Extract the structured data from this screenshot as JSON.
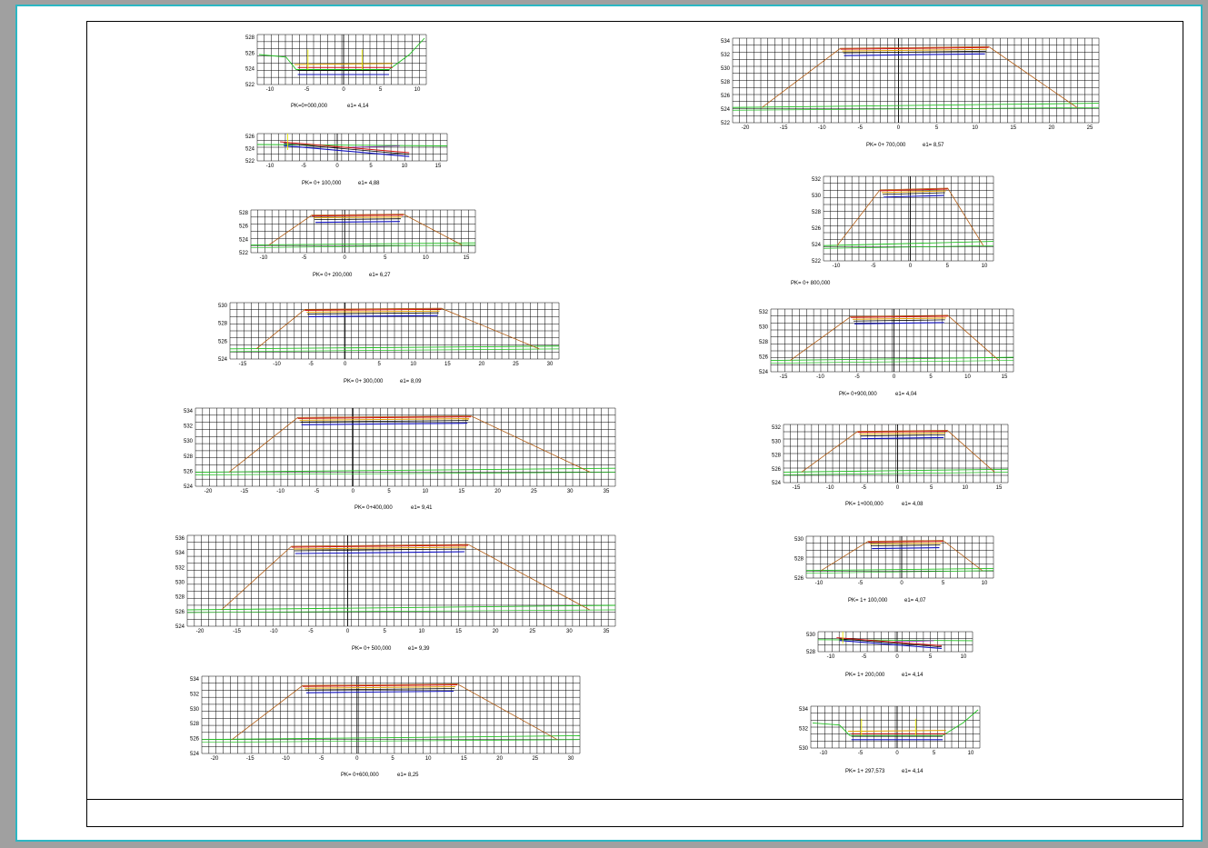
{
  "colors": {
    "paper": "#ffffff",
    "frame_border": "#2bb7c4",
    "grid": "#000000",
    "terrain": "#20c020",
    "design_edge": "#b05a10",
    "layer_blue": "#1010c0",
    "layer_red": "#d01010",
    "layer_orange": "#e0a000",
    "layer_purple": "#9020c0",
    "marker_yellow": "#e8e800"
  },
  "sections": [
    {
      "pk": "PK=0+000,000",
      "e": "e1= 4,14",
      "x_ticks": [
        "-10",
        "-5",
        "0",
        "5",
        "10"
      ],
      "y_ticks": [
        "528",
        "526",
        "524",
        "522"
      ],
      "shape": "ditch"
    },
    {
      "pk": "PK= 0+ 100,000",
      "e": "e1= 4,88",
      "x_ticks": [
        "-10",
        "-5",
        "0",
        "5",
        "10",
        "15"
      ],
      "y_ticks": [
        "526",
        "524",
        "522"
      ],
      "shape": "flat"
    },
    {
      "pk": "PK= 0+ 200,000",
      "e": "e1= 6,27",
      "x_ticks": [
        "-10",
        "-5",
        "0",
        "5",
        "10",
        "15"
      ],
      "y_ticks": [
        "528",
        "526",
        "524",
        "522"
      ],
      "shape": "embank"
    },
    {
      "pk": "PK= 0+ 300,000",
      "e": "e1= 8,09",
      "x_ticks": [
        "-15",
        "-10",
        "-5",
        "0",
        "5",
        "10",
        "15",
        "20",
        "25",
        "30"
      ],
      "y_ticks": [
        "530",
        "528",
        "526",
        "524"
      ],
      "shape": "embank"
    },
    {
      "pk": "PK= 0+400,000",
      "e": "e1= 9,41",
      "x_ticks": [
        "-20",
        "-15",
        "-10",
        "-5",
        "0",
        "5",
        "10",
        "15",
        "20",
        "25",
        "30",
        "35"
      ],
      "y_ticks": [
        "534",
        "532",
        "530",
        "528",
        "526",
        "524"
      ],
      "shape": "embank"
    },
    {
      "pk": "PK= 0+ 500,000",
      "e": "e1= 9,39",
      "x_ticks": [
        "-20",
        "-15",
        "-10",
        "-5",
        "0",
        "5",
        "10",
        "15",
        "20",
        "25",
        "30",
        "35"
      ],
      "y_ticks": [
        "536",
        "534",
        "532",
        "530",
        "528",
        "526",
        "524"
      ],
      "shape": "embank"
    },
    {
      "pk": "PK= 0+600,000",
      "e": "e1= 8,25",
      "x_ticks": [
        "-20",
        "-15",
        "-10",
        "-5",
        "0",
        "5",
        "10",
        "15",
        "20",
        "25",
        "30"
      ],
      "y_ticks": [
        "534",
        "532",
        "530",
        "528",
        "526",
        "524"
      ],
      "shape": "embank"
    },
    {
      "pk": "PK= 0+ 700,000",
      "e": "e1= 8,57",
      "x_ticks": [
        "-20",
        "-15",
        "-10",
        "-5",
        "0",
        "5",
        "10",
        "15",
        "20",
        "25"
      ],
      "y_ticks": [
        "534",
        "532",
        "530",
        "528",
        "526",
        "524",
        "522"
      ],
      "shape": "embank"
    },
    {
      "pk": "PK= 0+ 800,000",
      "e": "",
      "x_ticks": [
        "-10",
        "-5",
        "0",
        "5",
        "10"
      ],
      "y_ticks": [
        "532",
        "530",
        "528",
        "526",
        "524",
        "522"
      ],
      "shape": "high"
    },
    {
      "pk": "PK= 0+900,000",
      "e": "e1= 4,04",
      "x_ticks": [
        "-15",
        "-10",
        "-5",
        "0",
        "5",
        "10",
        "15"
      ],
      "y_ticks": [
        "532",
        "530",
        "528",
        "526",
        "524"
      ],
      "shape": "embank"
    },
    {
      "pk": "PK= 1+000,000",
      "e": "e1= 4,08",
      "x_ticks": [
        "-15",
        "-10",
        "-5",
        "0",
        "5",
        "10",
        "15"
      ],
      "y_ticks": [
        "532",
        "530",
        "528",
        "526",
        "524"
      ],
      "shape": "embank"
    },
    {
      "pk": "PK= 1+ 100,000",
      "e": "e1= 4,07",
      "x_ticks": [
        "-10",
        "-5",
        "0",
        "5",
        "10"
      ],
      "y_ticks": [
        "530",
        "528",
        "526"
      ],
      "shape": "embank"
    },
    {
      "pk": "PK= 1+ 200,000",
      "e": "e1= 4,14",
      "x_ticks": [
        "-10",
        "-5",
        "0",
        "5",
        "10"
      ],
      "y_ticks": [
        "530",
        "528"
      ],
      "shape": "flat"
    },
    {
      "pk": "PK= 1+ 297,573",
      "e": "e1= 4,14",
      "x_ticks": [
        "-10",
        "-5",
        "0",
        "5",
        "10"
      ],
      "y_ticks": [
        "534",
        "532",
        "530"
      ],
      "shape": "ditch"
    }
  ]
}
